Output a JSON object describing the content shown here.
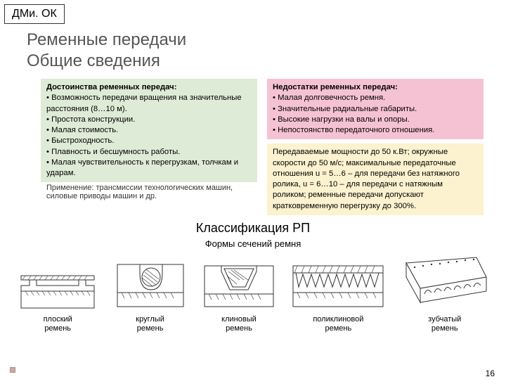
{
  "header": "ДМи. ОК",
  "title_line1": "Ременные передачи",
  "title_line2": "Общие сведения",
  "adv": {
    "heading": "Достоинства ременных передач:",
    "items": [
      "Возможность передачи вращения на значительные расстояния (8…10 м).",
      "Простота конструкции.",
      "Малая стоимость.",
      "Быстроходность.",
      "Плавность и бесшумность работы.",
      "Малая чувствительность к перегрузкам, толчкам и ударам."
    ],
    "note": "Применение: трансмиссии технологических машин, силовые приводы машин и др."
  },
  "dis": {
    "heading": "Недостатки ременных передач:",
    "items": [
      "Малая долговечность ремня.",
      "Значительные радиальные габариты.",
      "Высокие нагрузки на валы и опоры.",
      "Непостоянство передаточного отношения."
    ]
  },
  "params": "Передаваемые мощности до 50 к.Вт; окружные скорости до 50 м/с; максимальные передаточные отношения u = 5…6 – для передачи без натяжного ролика, u = 6…10 – для передачи с натяжным роликом; ременные передачи допускают кратковременную перегрузку до 300%.",
  "section": "Классификация РП",
  "subsection": "Формы сечений ремня",
  "belts": {
    "b1": "плоский\nремень",
    "b2": "круглый\nремень",
    "b3": "клиновый\nремень",
    "b4": "поликлиновой\nремень",
    "b5": "зубчатый\nремень"
  },
  "page": "16"
}
